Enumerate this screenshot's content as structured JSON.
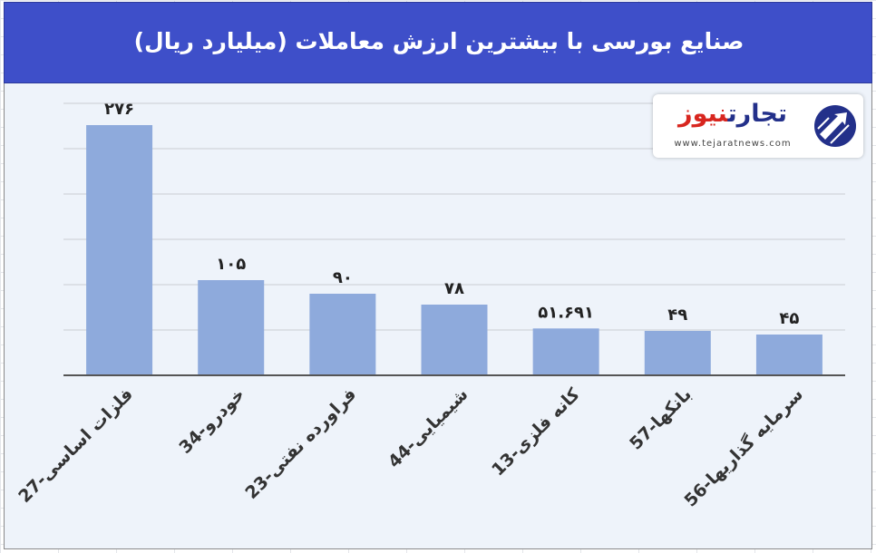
{
  "title": "صنایع بورسی با بیشترین ارزش معاملات  (میلیارد ریال)",
  "logo": {
    "name_part1": "تجارت",
    "name_part2": "نیوز",
    "url": "www.tejaratnews.com"
  },
  "colors": {
    "title_bar": "#3e4fc9",
    "bar": "#8eaadc",
    "background": "#eef3fa",
    "brand_red": "#d8261f",
    "brand_blue": "#23308a"
  },
  "chart_data": {
    "type": "bar",
    "title": "صنایع بورسی با بیشترین ارزش معاملات  (میلیارد ریال)",
    "categories": [
      "27-فلزات اساسی",
      "34-خودرو",
      "23-فراورده نفتی",
      "44-شیمیایی",
      "13-کانه فلزی",
      "57-بانکها",
      "56-سرمایه گذاریها"
    ],
    "values": [
      276,
      105,
      90,
      78,
      51.691,
      49,
      45
    ],
    "value_labels": [
      "۲۷۶",
      "۱۰۵",
      "۹۰",
      "۷۸",
      "۵۱.۶۹۱",
      "۴۹",
      "۴۵"
    ],
    "ylim": [
      0,
      300
    ],
    "grid": true,
    "legend": "none"
  }
}
